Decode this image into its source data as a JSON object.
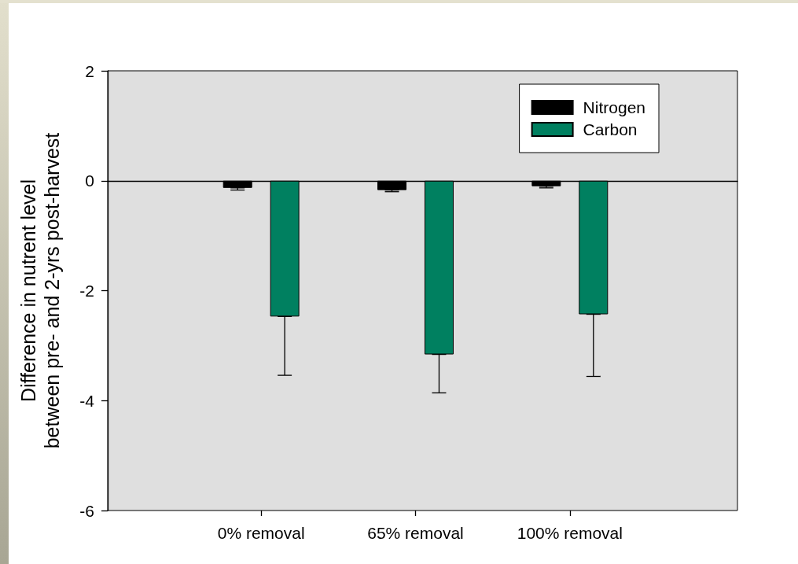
{
  "chart_data": {
    "type": "bar",
    "ylabel": "Difference in nutrent level\nbetween pre- and 2-yrs post-harvest",
    "categories": [
      "0% removal",
      "65% removal",
      "100% removal"
    ],
    "series": [
      {
        "name": "Nitrogen",
        "color": "#000000",
        "values": [
          -0.13,
          -0.17,
          -0.1
        ],
        "errors": [
          [
            -0.17,
            -0.13
          ],
          [
            -0.2,
            -0.17
          ],
          [
            -0.13,
            -0.1
          ]
        ]
      },
      {
        "name": "Carbon",
        "color": "#008060",
        "values": [
          -2.47,
          -3.16,
          -2.43
        ],
        "errors": [
          [
            -3.54,
            -2.47
          ],
          [
            -3.86,
            -3.16
          ],
          [
            -3.56,
            -2.43
          ]
        ]
      }
    ],
    "ylim": [
      -6,
      2
    ],
    "yticks": [
      -6,
      -4,
      -2,
      0,
      2
    ],
    "legend": "top right"
  }
}
